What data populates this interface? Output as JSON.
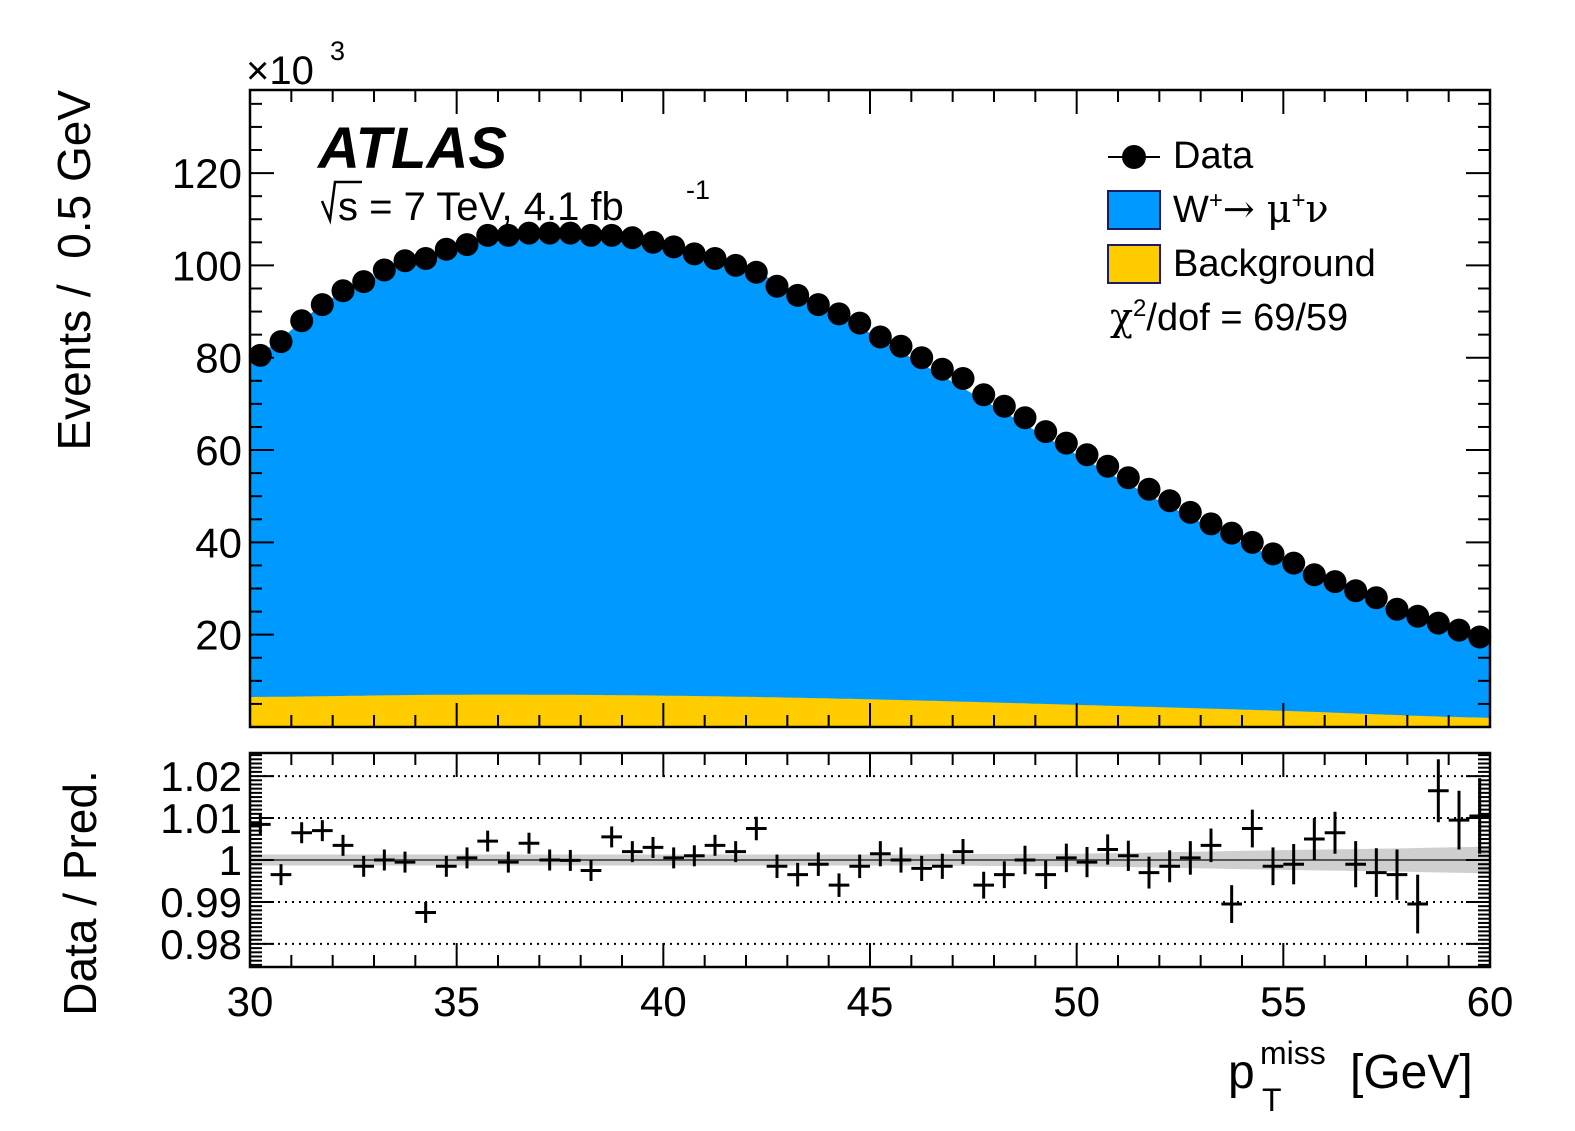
{
  "labels": {
    "experiment": "ATLAS",
    "energy_prefix": "s = 7 TeV, 4.1 fb",
    "energy_sup": "-1",
    "y_multiplier_base": "×10",
    "y_multiplier_exp": "3",
    "chi2_symbol": "χ",
    "chi2_sup": "2",
    "chi2_rest": "/dof = 69/59"
  },
  "legend": {
    "data_label": "Data",
    "signal_w": "W",
    "signal_w_sup": "+",
    "signal_arrow_mu": "→ μ",
    "signal_mu_sup": "+",
    "signal_nu": "ν",
    "background_label": "Background"
  },
  "colors": {
    "signal": "#0099ff",
    "background": "#ffcc00",
    "data": "#000000",
    "band": "#cfcfcf"
  },
  "chart_data": [
    {
      "type": "area",
      "panel": "main",
      "ylabel": "Events /  0.5 GeV",
      "xlim": [
        30,
        60
      ],
      "ylim": [
        0,
        138
      ],
      "y_scale_note": "×10^3",
      "yticks": [
        "20",
        "40",
        "60",
        "80",
        "100",
        "120"
      ],
      "x_bin_width": 0.5,
      "series": [
        {
          "name": "Data",
          "kind": "points",
          "x": [
            30.25,
            30.75,
            31.25,
            31.75,
            32.25,
            32.75,
            33.25,
            33.75,
            34.25,
            34.75,
            35.25,
            35.75,
            36.25,
            36.75,
            37.25,
            37.75,
            38.25,
            38.75,
            39.25,
            39.75,
            40.25,
            40.75,
            41.25,
            41.75,
            42.25,
            42.75,
            43.25,
            43.75,
            44.25,
            44.75,
            45.25,
            45.75,
            46.25,
            46.75,
            47.25,
            47.75,
            48.25,
            48.75,
            49.25,
            49.75,
            50.25,
            50.75,
            51.25,
            51.75,
            52.25,
            52.75,
            53.25,
            53.75,
            54.25,
            54.75,
            55.25,
            55.75,
            56.25,
            56.75,
            57.25,
            57.75,
            58.25,
            58.75,
            59.25,
            59.75
          ],
          "y": [
            80.5,
            83.5,
            88,
            91.5,
            94.5,
            96.5,
            99,
            101,
            101.5,
            103.5,
            104.5,
            106.5,
            106.5,
            107,
            107,
            107,
            106.5,
            106.5,
            106,
            105,
            104,
            102.5,
            101.5,
            100,
            98.5,
            95.5,
            93.5,
            91.5,
            89.5,
            87.5,
            84.5,
            82.5,
            80,
            77.5,
            75.5,
            72,
            69.5,
            67,
            64,
            61.5,
            59,
            56.5,
            54,
            51.5,
            49,
            46.5,
            44,
            42,
            40,
            37.5,
            35.5,
            33,
            31.5,
            29.5,
            28,
            25.5,
            24,
            22.5,
            21,
            19.5
          ]
        },
        {
          "name": "W+ → μ+ν",
          "kind": "stacked_area",
          "x": [
            30,
            32,
            34,
            36,
            38,
            40,
            42,
            44,
            46,
            48,
            50,
            52,
            54,
            56,
            58,
            60
          ],
          "y": [
            80,
            93,
            101,
            106,
            107,
            105,
            99.5,
            90.5,
            80,
            69.5,
            59,
            49,
            40,
            32,
            24.5,
            18.5
          ]
        },
        {
          "name": "Background",
          "kind": "stacked_area",
          "x": [
            30,
            35,
            40,
            45,
            50,
            55,
            60
          ],
          "y": [
            6.5,
            7,
            6.8,
            6,
            4.8,
            3.5,
            2
          ]
        }
      ]
    },
    {
      "type": "scatter",
      "panel": "ratio",
      "xlabel": "p_T^miss [GeV]",
      "ylabel": "Data / Pred.",
      "xlim": [
        30,
        60
      ],
      "ylim": [
        0.9745,
        1.0255
      ],
      "xticks": [
        "30",
        "35",
        "40",
        "45",
        "50",
        "55",
        "60"
      ],
      "yticks": [
        "0.98",
        "0.99",
        "1",
        "1.01",
        "1.02"
      ],
      "reference_lines": [
        0.98,
        0.99,
        1.0,
        1.01,
        1.02
      ],
      "series": [
        {
          "name": "Data / Pred.",
          "x": [
            30.25,
            30.75,
            31.25,
            31.75,
            32.25,
            32.75,
            33.25,
            33.75,
            34.25,
            34.75,
            35.25,
            35.75,
            36.25,
            36.75,
            37.25,
            37.75,
            38.25,
            38.75,
            39.25,
            39.75,
            40.25,
            40.75,
            41.25,
            41.75,
            42.25,
            42.75,
            43.25,
            43.75,
            44.25,
            44.75,
            45.25,
            45.75,
            46.25,
            46.75,
            47.25,
            47.75,
            48.25,
            48.75,
            49.25,
            49.75,
            50.25,
            50.75,
            51.25,
            51.75,
            52.25,
            52.75,
            53.25,
            53.75,
            54.25,
            54.75,
            55.25,
            55.75,
            56.25,
            56.75,
            57.25,
            57.75,
            58.25,
            58.75,
            59.25,
            59.75
          ],
          "y": [
            1.0085,
            0.9965,
            1.0065,
            1.007,
            1.0035,
            0.9985,
            1.0,
            0.9995,
            0.9875,
            0.9985,
            1.0005,
            1.0045,
            0.9995,
            1.004,
            1.0,
            0.9999,
            0.9975,
            1.0055,
            1.002,
            1.003,
            1.0005,
            1.001,
            1.0035,
            1.002,
            1.0075,
            0.9985,
            0.9965,
            0.999,
            0.994,
            0.9985,
            1.0015,
            1.0,
            0.998,
            0.9985,
            1.002,
            0.994,
            0.9965,
            1.0,
            0.9965,
            1.0005,
            0.9995,
            1.0025,
            1.001,
            0.997,
            0.9985,
            1.0005,
            1.0035,
            0.9895,
            1.0075,
            0.9985,
            0.999,
            1.005,
            1.0065,
            0.999,
            0.997,
            0.9965,
            0.9895,
            1.0165,
            1.0095,
            1.0105
          ],
          "err": [
            0.0025,
            0.0025,
            0.0025,
            0.0025,
            0.0025,
            0.0025,
            0.0025,
            0.0025,
            0.0025,
            0.0025,
            0.0025,
            0.0025,
            0.0025,
            0.0025,
            0.0025,
            0.0025,
            0.0025,
            0.0025,
            0.0025,
            0.0025,
            0.0025,
            0.0025,
            0.0025,
            0.0025,
            0.0028,
            0.0028,
            0.0028,
            0.0028,
            0.0028,
            0.0028,
            0.003,
            0.003,
            0.003,
            0.003,
            0.003,
            0.0032,
            0.0032,
            0.0034,
            0.0034,
            0.0034,
            0.0036,
            0.0036,
            0.0036,
            0.0038,
            0.0038,
            0.004,
            0.004,
            0.0045,
            0.0045,
            0.0045,
            0.0048,
            0.005,
            0.005,
            0.0055,
            0.0058,
            0.006,
            0.007,
            0.0075,
            0.007,
            0.009
          ]
        },
        {
          "name": "Prediction uncertainty",
          "kind": "band",
          "x": [
            30,
            35,
            40,
            45,
            50,
            52,
            54,
            56,
            58,
            60
          ],
          "half_width": [
            0.0013,
            0.0013,
            0.0013,
            0.0013,
            0.0015,
            0.0018,
            0.0022,
            0.0025,
            0.0028,
            0.0032
          ]
        }
      ]
    }
  ]
}
